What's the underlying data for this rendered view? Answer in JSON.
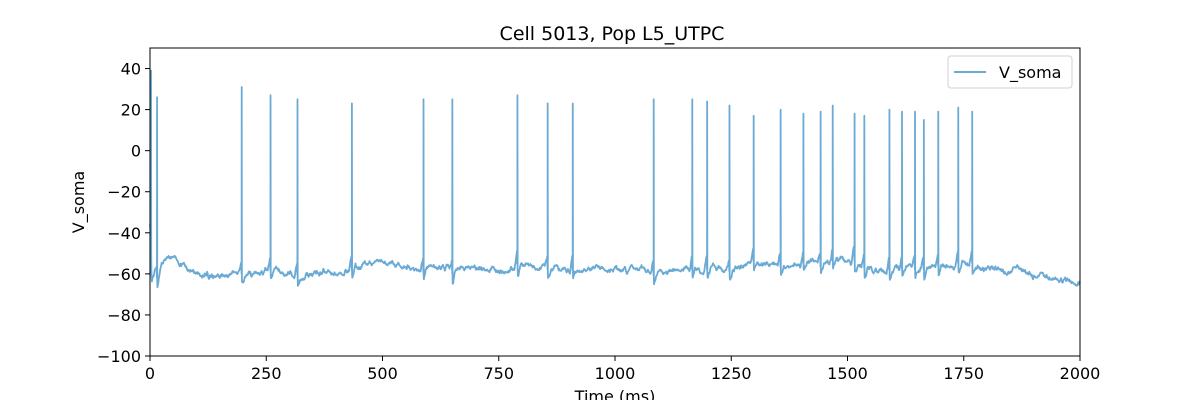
{
  "chart_data": {
    "type": "line",
    "title": "Cell 5013, Pop L5_UTPC",
    "xlabel": "Time (ms)",
    "ylabel": "V_soma",
    "xlim": [
      0,
      2000
    ],
    "ylim": [
      -100,
      50
    ],
    "xticks": [
      0,
      250,
      500,
      750,
      1000,
      1250,
      1500,
      1750,
      2000
    ],
    "yticks": [
      -100,
      -80,
      -60,
      -40,
      -20,
      0,
      20,
      40
    ],
    "grid": false,
    "legend": {
      "placement": "top-right",
      "entries": [
        "V_soma"
      ]
    },
    "series": [
      {
        "name": "V_soma",
        "color": "#6aaad4",
        "baseline": [
          [
            0,
            -40
          ],
          [
            4,
            -62
          ],
          [
            10,
            -63
          ],
          [
            16,
            -64
          ],
          [
            25,
            -57
          ],
          [
            40,
            -54
          ],
          [
            60,
            -55
          ],
          [
            80,
            -57
          ],
          [
            100,
            -61
          ],
          [
            130,
            -62
          ],
          [
            160,
            -60
          ],
          [
            190,
            -59
          ],
          [
            220,
            -61
          ],
          [
            250,
            -60
          ],
          [
            280,
            -58
          ],
          [
            310,
            -62
          ],
          [
            340,
            -61
          ],
          [
            370,
            -59
          ],
          [
            400,
            -60
          ],
          [
            430,
            -59
          ],
          [
            460,
            -57
          ],
          [
            500,
            -56
          ],
          [
            550,
            -57
          ],
          [
            600,
            -58
          ],
          [
            650,
            -59
          ],
          [
            700,
            -58
          ],
          [
            750,
            -57
          ],
          [
            800,
            -56
          ],
          [
            850,
            -57
          ],
          [
            900,
            -58
          ],
          [
            950,
            -59
          ],
          [
            1000,
            -58
          ],
          [
            1050,
            -57
          ],
          [
            1100,
            -58
          ],
          [
            1150,
            -57
          ],
          [
            1200,
            -58
          ],
          [
            1250,
            -57
          ],
          [
            1300,
            -56
          ],
          [
            1350,
            -56
          ],
          [
            1400,
            -57
          ],
          [
            1450,
            -55
          ],
          [
            1500,
            -54
          ],
          [
            1550,
            -56
          ],
          [
            1600,
            -57
          ],
          [
            1650,
            -56
          ],
          [
            1700,
            -57
          ],
          [
            1750,
            -56
          ],
          [
            1780,
            -58
          ],
          [
            1800,
            -59
          ],
          [
            1850,
            -60
          ],
          [
            1900,
            -61
          ],
          [
            1950,
            -62
          ],
          [
            1975,
            -64
          ],
          [
            1990,
            -66
          ],
          [
            2000,
            -65
          ]
        ],
        "spikes": [
          [
            2,
            39
          ],
          [
            15,
            26
          ],
          [
            197,
            31
          ],
          [
            259,
            27
          ],
          [
            317,
            25
          ],
          [
            434,
            23
          ],
          [
            588,
            25
          ],
          [
            650,
            25
          ],
          [
            790,
            27
          ],
          [
            855,
            23
          ],
          [
            909,
            23
          ],
          [
            1083,
            25
          ],
          [
            1166,
            25
          ],
          [
            1198,
            24
          ],
          [
            1246,
            22
          ],
          [
            1298,
            17
          ],
          [
            1356,
            20
          ],
          [
            1405,
            18
          ],
          [
            1442,
            19
          ],
          [
            1468,
            22
          ],
          [
            1515,
            18
          ],
          [
            1536,
            17
          ],
          [
            1590,
            20
          ],
          [
            1617,
            19
          ],
          [
            1645,
            19
          ],
          [
            1664,
            15
          ],
          [
            1695,
            19
          ],
          [
            1738,
            21
          ],
          [
            1768,
            19
          ]
        ]
      }
    ]
  }
}
